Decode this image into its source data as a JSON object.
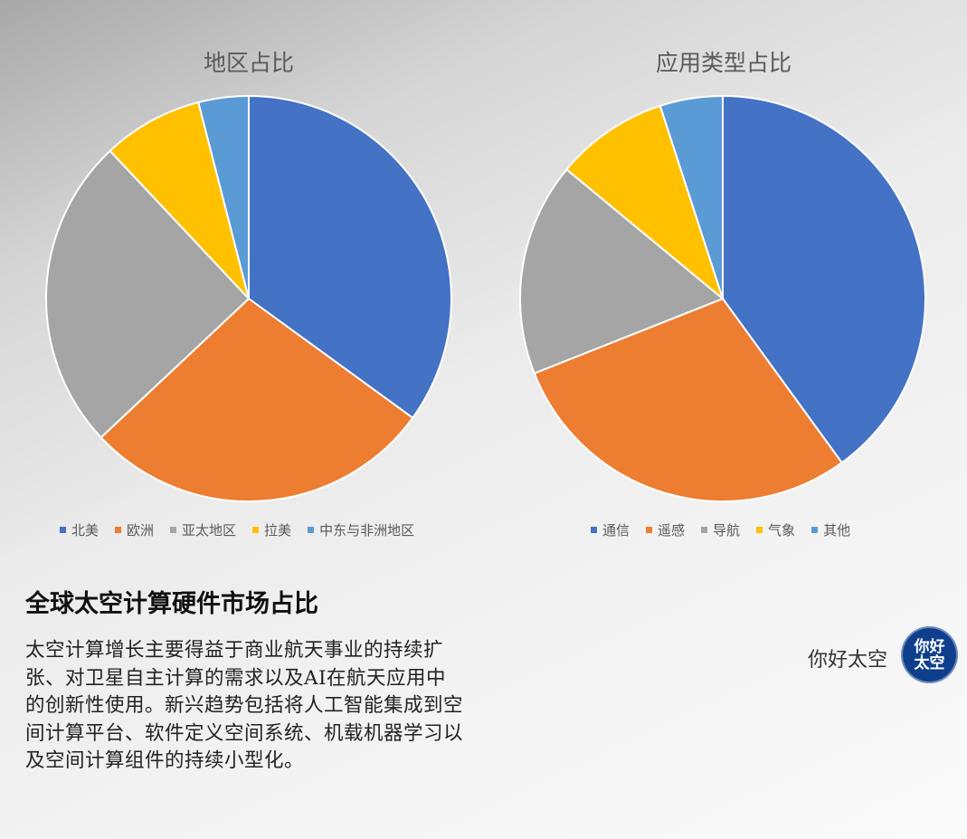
{
  "chart_data": [
    {
      "type": "pie",
      "title": "地区占比",
      "categories": [
        "北美",
        "欧洲",
        "亚太地区",
        "拉美",
        "中东与非洲地区"
      ],
      "values": [
        35,
        28,
        25,
        8,
        4
      ],
      "colors": [
        "#4472c4",
        "#ed7d31",
        "#a5a5a5",
        "#ffc000",
        "#5b9bd5"
      ],
      "legend": "bottom"
    },
    {
      "type": "pie",
      "title": "应用类型占比",
      "categories": [
        "通信",
        "遥感",
        "导航",
        "气象",
        "其他"
      ],
      "values": [
        40,
        29,
        17,
        9,
        5
      ],
      "colors": [
        "#4472c4",
        "#ed7d31",
        "#a5a5a5",
        "#ffc000",
        "#5b9bd5"
      ],
      "legend": "bottom"
    }
  ],
  "text": {
    "heading": "全球太空计算硬件市场占比",
    "body": "太空计算增长主要得益于商业航天事业的持续扩张、对卫星自主计算的需求以及AI在航天应用中的创新性使用。新兴趋势包括将人工智能集成到空间计算平台、软件定义空间系统、机载机器学习以及空间计算组件的持续小型化。"
  },
  "brand": {
    "name": "你好太空",
    "logo_text": "你好太空"
  }
}
